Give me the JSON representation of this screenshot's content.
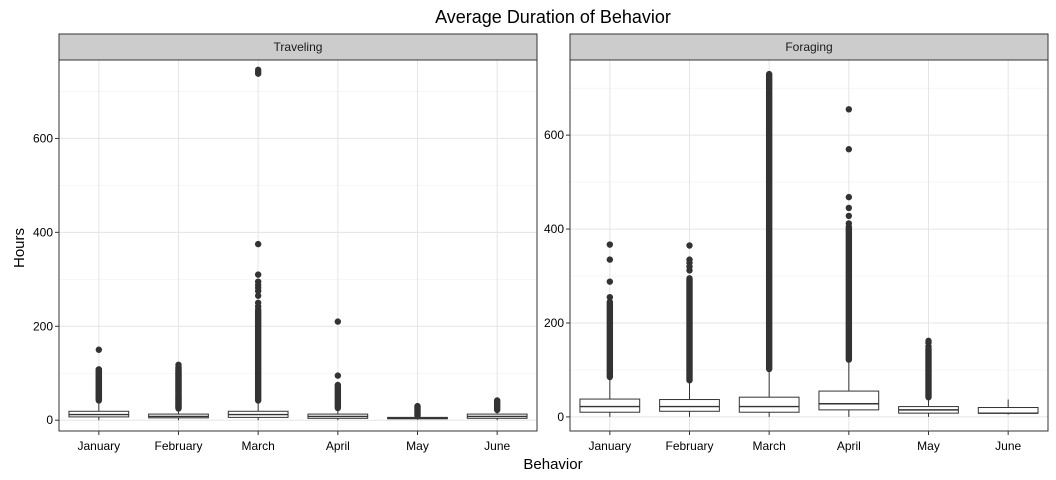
{
  "chart_data": {
    "type": "box",
    "title": "Average Duration of Behavior",
    "xlabel": "Behavior",
    "ylabel": "Hours",
    "categories": [
      "January",
      "February",
      "March",
      "April",
      "May",
      "June"
    ],
    "grid": true,
    "panels": [
      {
        "name": "Traveling",
        "ylim": [
          -23,
          767
        ],
        "yticks": [
          0,
          200,
          400,
          600
        ],
        "boxes": [
          {
            "category": "January",
            "q1": 7,
            "median": 12,
            "q3": 19,
            "whisker_low": 0,
            "whisker_high": 42,
            "outliers": [
              45,
              48,
              52,
              55,
              58,
              62,
              65,
              68,
              72,
              75,
              78,
              82,
              85,
              88,
              92,
              95,
              98,
              102,
              105,
              108,
              150
            ],
            "outlier_range": [
              42,
              108
            ]
          },
          {
            "category": "February",
            "q1": 5,
            "median": 8,
            "q3": 13,
            "whisker_low": 0,
            "whisker_high": 25,
            "outliers": [
              28,
              32,
              36,
              40,
              45,
              50,
              55,
              60,
              65,
              70,
              75,
              80,
              85,
              90,
              95,
              100,
              105,
              112,
              118
            ],
            "outlier_range": [
              25,
              110
            ]
          },
          {
            "category": "March",
            "q1": 6,
            "median": 12,
            "q3": 19,
            "whisker_low": 0,
            "whisker_high": 40,
            "outliers": [
              236,
              242,
              250,
              265,
              275,
              282,
              288,
              295,
              310,
              375,
              738,
              742,
              746
            ],
            "outlier_range": [
              42,
              232
            ]
          },
          {
            "category": "April",
            "q1": 4,
            "median": 8,
            "q3": 13,
            "whisker_low": 0,
            "whisker_high": 25,
            "outliers": [
              95,
              210
            ],
            "outlier_range": [
              26,
              75
            ]
          },
          {
            "category": "May",
            "q1": 3,
            "median": 4,
            "q3": 6,
            "whisker_low": 1,
            "whisker_high": 8,
            "outliers": [],
            "outlier_range": [
              9,
              30
            ]
          },
          {
            "category": "June",
            "q1": 4,
            "median": 8,
            "q3": 13,
            "whisker_low": 0,
            "whisker_high": 20,
            "outliers": [],
            "outlier_range": [
              22,
              42
            ]
          }
        ]
      },
      {
        "name": "Foraging",
        "ylim": [
          -30,
          760
        ],
        "yticks": [
          0,
          200,
          400,
          600
        ],
        "boxes": [
          {
            "category": "January",
            "q1": 10,
            "median": 22,
            "q3": 38,
            "whisker_low": 0,
            "whisker_high": 82,
            "outliers": [
              255,
              288,
              335,
              367
            ],
            "outlier_range": [
              85,
              245
            ]
          },
          {
            "category": "February",
            "q1": 12,
            "median": 22,
            "q3": 37,
            "whisker_low": 0,
            "whisker_high": 75,
            "outliers": [
              312,
              320,
              328,
              335,
              365
            ],
            "outlier_range": [
              78,
              295
            ]
          },
          {
            "category": "March",
            "q1": 10,
            "median": 22,
            "q3": 42,
            "whisker_low": 0,
            "whisker_high": 100,
            "outliers": [],
            "outlier_range": [
              102,
              730
            ]
          },
          {
            "category": "April",
            "q1": 15,
            "median": 28,
            "q3": 55,
            "whisker_low": 0,
            "whisker_high": 120,
            "outliers": [
              412,
              428,
              445,
              468,
              570,
              655
            ],
            "outlier_range": [
              122,
              405
            ]
          },
          {
            "category": "May",
            "q1": 8,
            "median": 15,
            "q3": 22,
            "whisker_low": 0,
            "whisker_high": 40,
            "outliers": [
              150,
              158,
              162
            ],
            "outlier_range": [
              42,
              145
            ]
          },
          {
            "category": "June",
            "q1": 8,
            "median": 8,
            "q3": 20,
            "whisker_low": 5,
            "whisker_high": 37,
            "outliers": [],
            "outlier_range": []
          }
        ]
      }
    ]
  }
}
